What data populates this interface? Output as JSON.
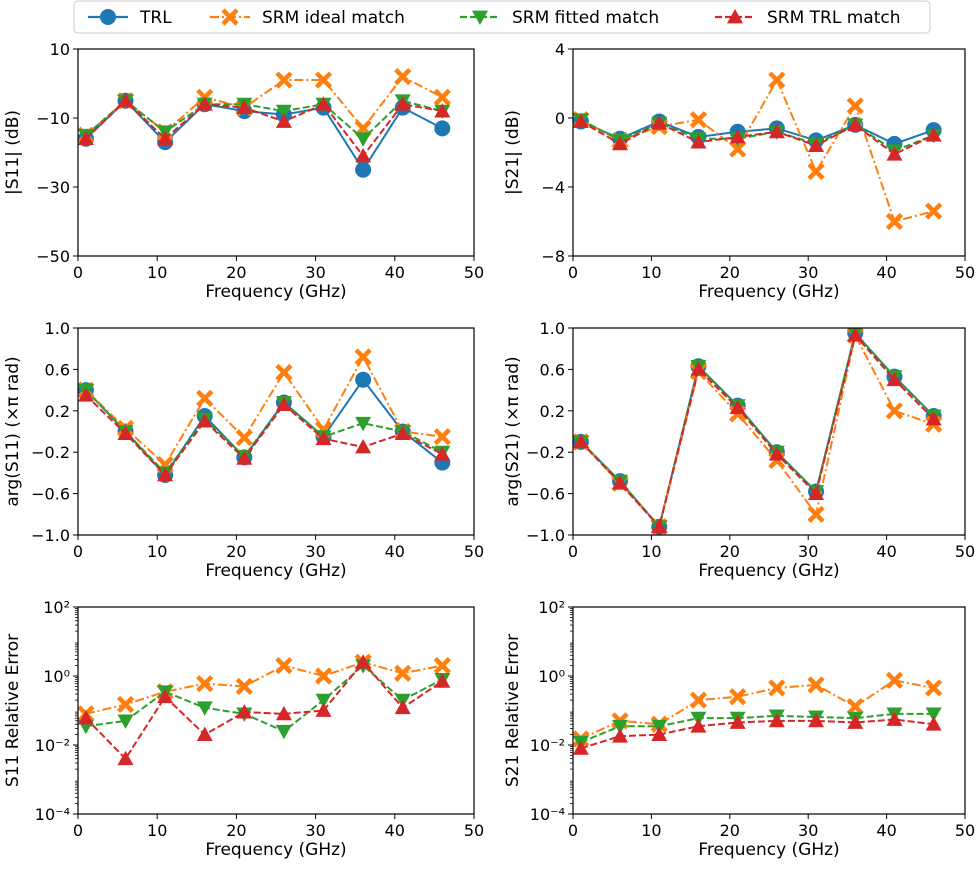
{
  "legend": {
    "placement": "top-center",
    "entries": [
      {
        "name": "TRL",
        "color": "#1f77b4",
        "marker": "circle",
        "dash": "solid"
      },
      {
        "name": "SRM ideal match",
        "color": "#ff7f0e",
        "marker": "x",
        "dash": "dashdot"
      },
      {
        "name": "SRM fitted match",
        "color": "#2ca02c",
        "marker": "triangle-down",
        "dash": "dashed"
      },
      {
        "name": "SRM TRL match",
        "color": "#d62728",
        "marker": "triangle-up",
        "dash": "dashed"
      }
    ]
  },
  "chart_data": [
    {
      "id": "s11-mag",
      "type": "line",
      "scale": "linear",
      "xlabel": "Frequency (GHz)",
      "ylabel": "|S11| (dB)",
      "xlim": [
        0,
        50
      ],
      "ylim": [
        -50,
        10
      ],
      "xticks": [
        0,
        10,
        20,
        30,
        40,
        50
      ],
      "xtick_labels": [
        "0",
        "10",
        "20",
        "30",
        "40",
        "50"
      ],
      "yticks": [
        -50,
        -30,
        -10,
        10
      ],
      "ytick_labels": [
        "−50",
        "−30",
        "−10",
        "10"
      ],
      "series": [
        {
          "name": "TRL",
          "x": [
            1,
            6,
            11,
            16,
            21,
            26,
            31,
            36,
            41,
            46
          ],
          "y": [
            -16,
            -5,
            -17,
            -6,
            -8,
            -9,
            -7,
            -25,
            -7,
            -13
          ]
        },
        {
          "name": "SRM ideal match",
          "x": [
            1,
            6,
            11,
            16,
            21,
            26,
            31,
            36,
            41,
            46
          ],
          "y": [
            -15,
            -5,
            -14,
            -4,
            -7,
            1,
            1,
            -13,
            2,
            -4
          ]
        },
        {
          "name": "SRM fitted match",
          "x": [
            1,
            6,
            11,
            16,
            21,
            26,
            31,
            36,
            41,
            46
          ],
          "y": [
            -15,
            -5,
            -14,
            -6,
            -6,
            -8,
            -6,
            -16,
            -5,
            -8
          ]
        },
        {
          "name": "SRM TRL match",
          "x": [
            1,
            6,
            11,
            16,
            21,
            26,
            31,
            36,
            41,
            46
          ],
          "y": [
            -16,
            -5,
            -16,
            -6,
            -7,
            -11,
            -6,
            -21,
            -6,
            -8
          ]
        }
      ]
    },
    {
      "id": "s21-mag",
      "type": "line",
      "scale": "linear",
      "xlabel": "Frequency (GHz)",
      "ylabel": "|S21| (dB)",
      "xlim": [
        0,
        50
      ],
      "ylim": [
        -8,
        4
      ],
      "xticks": [
        0,
        10,
        20,
        30,
        40,
        50
      ],
      "xtick_labels": [
        "0",
        "10",
        "20",
        "30",
        "40",
        "50"
      ],
      "yticks": [
        -8,
        -4,
        0,
        4
      ],
      "ytick_labels": [
        "−8",
        "−4",
        "0",
        "4"
      ],
      "series": [
        {
          "name": "TRL",
          "x": [
            1,
            6,
            11,
            16,
            21,
            26,
            31,
            36,
            41,
            46
          ],
          "y": [
            -0.2,
            -1.2,
            -0.2,
            -1.1,
            -0.8,
            -0.6,
            -1.3,
            -0.4,
            -1.5,
            -0.7
          ]
        },
        {
          "name": "SRM ideal match",
          "x": [
            1,
            6,
            11,
            16,
            21,
            26,
            31,
            36,
            41,
            46
          ],
          "y": [
            -0.1,
            -1.3,
            -0.5,
            -0.1,
            -1.8,
            2.2,
            -3.1,
            0.7,
            -6.0,
            -5.4
          ]
        },
        {
          "name": "SRM fitted match",
          "x": [
            1,
            6,
            11,
            16,
            21,
            26,
            31,
            36,
            41,
            46
          ],
          "y": [
            -0.1,
            -1.3,
            -0.3,
            -1.2,
            -1.2,
            -0.8,
            -1.5,
            -0.4,
            -1.9,
            -1.0
          ]
        },
        {
          "name": "SRM TRL match",
          "x": [
            1,
            6,
            11,
            16,
            21,
            26,
            31,
            36,
            41,
            46
          ],
          "y": [
            -0.2,
            -1.5,
            -0.3,
            -1.4,
            -1.1,
            -0.8,
            -1.6,
            -0.4,
            -2.1,
            -1.0
          ]
        }
      ]
    },
    {
      "id": "s11-arg",
      "type": "line",
      "scale": "linear",
      "xlabel": "Frequency (GHz)",
      "ylabel": "arg(S11) (×π rad)",
      "xlim": [
        0,
        50
      ],
      "ylim": [
        -1.0,
        1.0
      ],
      "xticks": [
        0,
        10,
        20,
        30,
        40,
        50
      ],
      "xtick_labels": [
        "0",
        "10",
        "20",
        "30",
        "40",
        "50"
      ],
      "yticks": [
        -1.0,
        -0.6,
        -0.2,
        0.2,
        0.6,
        1.0
      ],
      "ytick_labels": [
        "−1.0",
        "−0.6",
        "−0.2",
        "0.2",
        "0.6",
        "1.0"
      ],
      "series": [
        {
          "name": "TRL",
          "x": [
            1,
            6,
            11,
            16,
            21,
            26,
            31,
            36,
            41,
            46
          ],
          "y": [
            0.4,
            0.0,
            -0.42,
            0.15,
            -0.25,
            0.28,
            -0.05,
            0.5,
            0.0,
            -0.3
          ]
        },
        {
          "name": "SRM ideal match",
          "x": [
            1,
            6,
            11,
            16,
            21,
            26,
            31,
            36,
            41,
            46
          ],
          "y": [
            0.4,
            0.03,
            -0.32,
            0.32,
            -0.06,
            0.57,
            0.02,
            0.72,
            0.0,
            -0.05
          ]
        },
        {
          "name": "SRM fitted match",
          "x": [
            1,
            6,
            11,
            16,
            21,
            26,
            31,
            36,
            41,
            46
          ],
          "y": [
            0.4,
            0.0,
            -0.4,
            0.12,
            -0.24,
            0.28,
            -0.05,
            0.08,
            0.0,
            -0.2
          ]
        },
        {
          "name": "SRM TRL match",
          "x": [
            1,
            6,
            11,
            16,
            21,
            26,
            31,
            36,
            41,
            46
          ],
          "y": [
            0.35,
            -0.02,
            -0.42,
            0.1,
            -0.26,
            0.26,
            -0.07,
            -0.15,
            -0.02,
            -0.22
          ]
        }
      ]
    },
    {
      "id": "s21-arg",
      "type": "line",
      "scale": "linear",
      "xlabel": "Frequency (GHz)",
      "ylabel": "arg(S21) (×π rad)",
      "xlim": [
        0,
        50
      ],
      "ylim": [
        -1.0,
        1.0
      ],
      "xticks": [
        0,
        10,
        20,
        30,
        40,
        50
      ],
      "xtick_labels": [
        "0",
        "10",
        "20",
        "30",
        "40",
        "50"
      ],
      "yticks": [
        -1.0,
        -0.6,
        -0.2,
        0.2,
        0.6,
        1.0
      ],
      "ytick_labels": [
        "−1.0",
        "−0.6",
        "−0.2",
        "0.2",
        "0.6",
        "1.0"
      ],
      "series": [
        {
          "name": "TRL",
          "x": [
            1,
            6,
            11,
            16,
            21,
            26,
            31,
            36,
            41,
            46
          ],
          "y": [
            -0.1,
            -0.48,
            -0.92,
            0.63,
            0.25,
            -0.2,
            -0.58,
            0.95,
            0.53,
            0.15
          ]
        },
        {
          "name": "SRM ideal match",
          "x": [
            1,
            6,
            11,
            16,
            21,
            26,
            31,
            36,
            41,
            46
          ],
          "y": [
            -0.1,
            -0.5,
            -0.92,
            0.58,
            0.17,
            -0.28,
            -0.8,
            0.93,
            0.2,
            0.07
          ]
        },
        {
          "name": "SRM fitted match",
          "x": [
            1,
            6,
            11,
            16,
            21,
            26,
            31,
            36,
            41,
            46
          ],
          "y": [
            -0.1,
            -0.48,
            -0.92,
            0.63,
            0.25,
            -0.2,
            -0.58,
            0.95,
            0.53,
            0.15
          ]
        },
        {
          "name": "SRM TRL match",
          "x": [
            1,
            6,
            11,
            16,
            21,
            26,
            31,
            36,
            41,
            46
          ],
          "y": [
            -0.1,
            -0.5,
            -0.92,
            0.6,
            0.23,
            -0.22,
            -0.6,
            0.93,
            0.5,
            0.12
          ]
        }
      ]
    },
    {
      "id": "s11-err",
      "type": "line",
      "scale": "log",
      "xlabel": "Frequency (GHz)",
      "ylabel": "S11 Relative Error",
      "xlim": [
        0,
        50
      ],
      "ylim": [
        0.0001,
        100
      ],
      "xticks": [
        0,
        10,
        20,
        30,
        40,
        50
      ],
      "xtick_labels": [
        "0",
        "10",
        "20",
        "30",
        "40",
        "50"
      ],
      "yticks": [
        0.0001,
        0.01,
        1,
        100
      ],
      "ytick_labels": [
        "10⁻⁴",
        "10⁻²",
        "10⁰",
        "10²"
      ],
      "series": [
        {
          "name": "SRM ideal match",
          "x": [
            1,
            6,
            11,
            16,
            21,
            26,
            31,
            36,
            41,
            46
          ],
          "y": [
            0.08,
            0.15,
            0.35,
            0.6,
            0.5,
            2,
            1,
            2.5,
            1.2,
            2
          ]
        },
        {
          "name": "SRM fitted match",
          "x": [
            1,
            6,
            11,
            16,
            21,
            26,
            31,
            36,
            41,
            46
          ],
          "y": [
            0.035,
            0.05,
            0.35,
            0.12,
            0.08,
            0.025,
            0.2,
            2,
            0.2,
            0.8
          ]
        },
        {
          "name": "SRM TRL match",
          "x": [
            1,
            6,
            11,
            16,
            21,
            26,
            31,
            36,
            41,
            46
          ],
          "y": [
            0.06,
            0.004,
            0.25,
            0.02,
            0.09,
            0.08,
            0.1,
            2.5,
            0.12,
            0.7
          ]
        }
      ]
    },
    {
      "id": "s21-err",
      "type": "line",
      "scale": "log",
      "xlabel": "Frequency (GHz)",
      "ylabel": "S21 Relative Error",
      "xlim": [
        0,
        50
      ],
      "ylim": [
        0.0001,
        100
      ],
      "xticks": [
        0,
        10,
        20,
        30,
        40,
        50
      ],
      "xtick_labels": [
        "0",
        "10",
        "20",
        "30",
        "40",
        "50"
      ],
      "yticks": [
        0.0001,
        0.01,
        1,
        100
      ],
      "ytick_labels": [
        "10⁻⁴",
        "10⁻²",
        "10⁰",
        "10²"
      ],
      "series": [
        {
          "name": "SRM ideal match",
          "x": [
            1,
            6,
            11,
            16,
            21,
            26,
            31,
            36,
            41,
            46
          ],
          "y": [
            0.015,
            0.05,
            0.04,
            0.2,
            0.25,
            0.45,
            0.55,
            0.13,
            0.75,
            0.45
          ]
        },
        {
          "name": "SRM fitted match",
          "x": [
            1,
            6,
            11,
            16,
            21,
            26,
            31,
            36,
            41,
            46
          ],
          "y": [
            0.012,
            0.035,
            0.035,
            0.06,
            0.06,
            0.07,
            0.065,
            0.06,
            0.08,
            0.08
          ]
        },
        {
          "name": "SRM TRL match",
          "x": [
            1,
            6,
            11,
            16,
            21,
            26,
            31,
            36,
            41,
            46
          ],
          "y": [
            0.008,
            0.018,
            0.02,
            0.035,
            0.045,
            0.05,
            0.05,
            0.045,
            0.055,
            0.04
          ]
        }
      ]
    }
  ]
}
